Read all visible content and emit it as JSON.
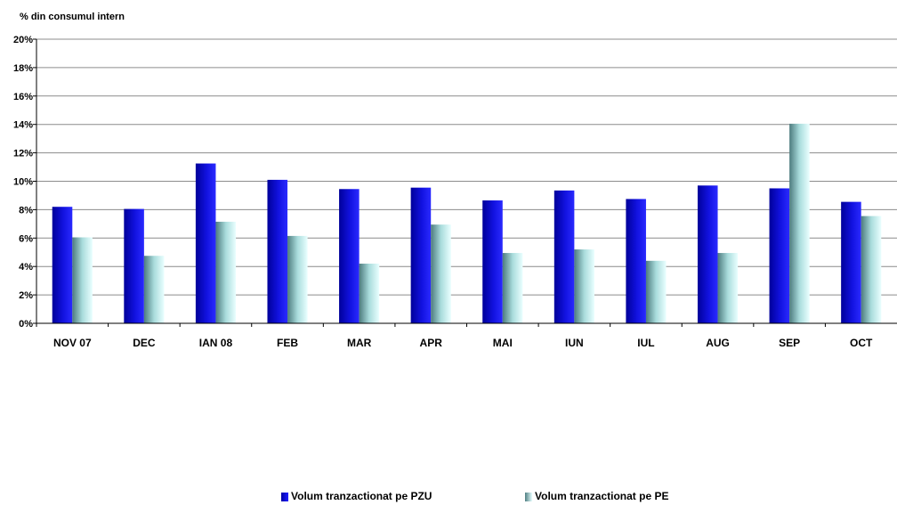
{
  "chart_data": {
    "type": "bar",
    "title": "",
    "xlabel": "",
    "ylabel": "% din consumul intern",
    "ylim": [
      0,
      20
    ],
    "yticks": [
      "0%",
      "2%",
      "4%",
      "6%",
      "8%",
      "10%",
      "12%",
      "14%",
      "16%",
      "18%",
      "20%"
    ],
    "grid": true,
    "legend_position": "bottom",
    "categories": [
      "NOV 07",
      "DEC",
      "IAN 08",
      "FEB",
      "MAR",
      "APR",
      "MAI",
      "IUN",
      "IUL",
      "AUG",
      "SEP",
      "OCT"
    ],
    "series": [
      {
        "name": "Volum tranzactionat pe PZU",
        "color": "#1414e6",
        "values": [
          8.2,
          8.05,
          11.25,
          10.1,
          9.45,
          9.55,
          8.65,
          9.35,
          8.75,
          9.7,
          9.5,
          8.55
        ]
      },
      {
        "name": "Volum tranzactionat pe PE",
        "color": "#b8f0f0",
        "values": [
          6.05,
          4.75,
          7.15,
          6.15,
          4.2,
          6.95,
          4.95,
          5.2,
          4.4,
          4.95,
          14.05,
          7.55
        ]
      }
    ]
  }
}
